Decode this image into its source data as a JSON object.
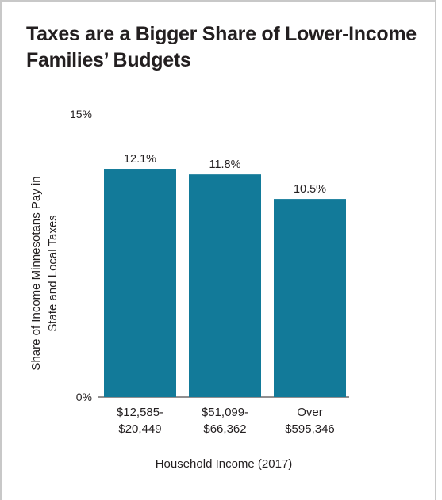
{
  "title_lines": [
    "Taxes are a Bigger Share of Lower-Income",
    "Families’ Budgets"
  ],
  "colors": {
    "bar": "#127a99",
    "text": "#231f20",
    "frame": "#c8c8c8"
  },
  "chart_data": {
    "type": "bar",
    "title": "Taxes are a Bigger Share of Lower-Income Families’ Budgets",
    "categories": [
      [
        "$12,585-",
        "$20,449"
      ],
      [
        "$51,099-",
        "$66,362"
      ],
      [
        "Over",
        "$595,346"
      ]
    ],
    "values": [
      12.1,
      11.8,
      10.5
    ],
    "data_labels": [
      "12.1%",
      "11.8%",
      "10.5%"
    ],
    "xlabel": "Household Income (2017)",
    "ylabel_lines": [
      "Share of Income Minnesotans Pay in",
      "State and Local Taxes"
    ],
    "ylim": [
      0,
      15
    ],
    "y_tick_labels": [
      "0%",
      "15%"
    ],
    "grid": false,
    "legend": "none"
  }
}
